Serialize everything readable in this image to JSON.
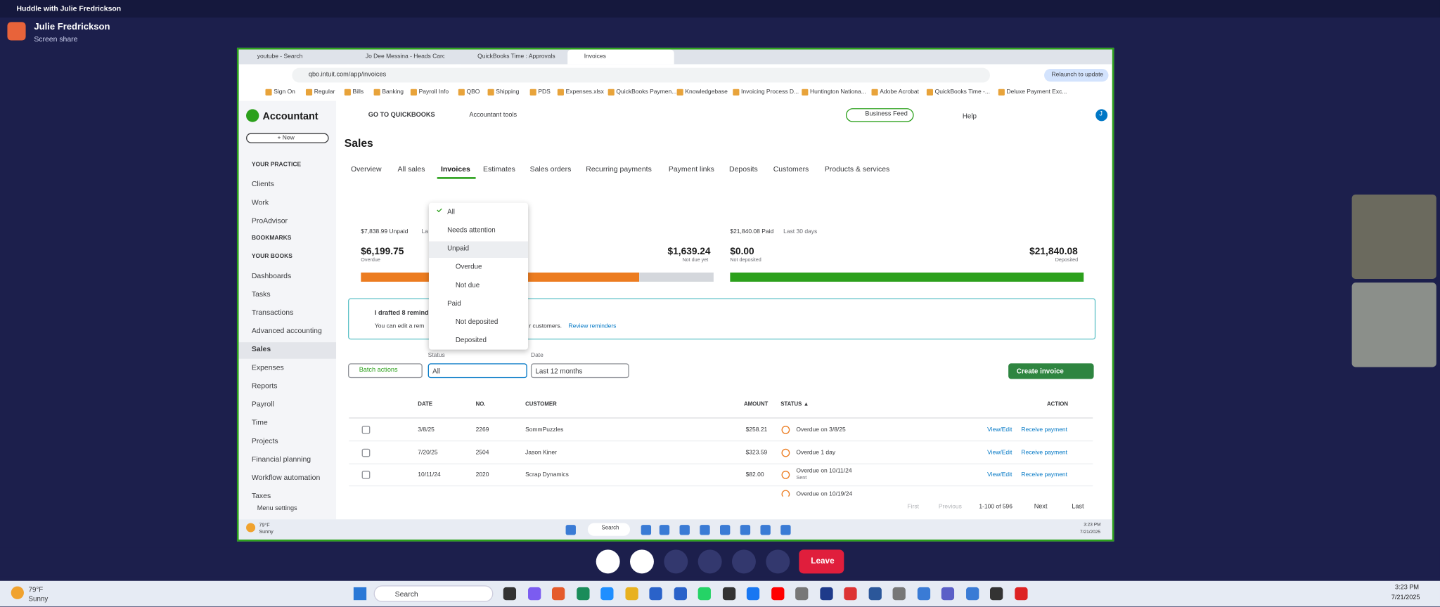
{
  "huddle": {
    "title": "Huddle with Julie Fredrickson",
    "presenter": "Julie Fredrickson",
    "subtitle": "Screen share",
    "leave": "Leave"
  },
  "browser": {
    "tabs": [
      "youtube - Search",
      "Jo Dee Messina - Heads Carolin...",
      "QuickBooks Time : Approvals",
      "Invoices"
    ],
    "url": "qbo.intuit.com/app/invoices",
    "relaunch": "Relaunch to update",
    "bookmarks": [
      "Sign On",
      "Regular",
      "Bills",
      "Banking",
      "Payroll Info",
      "QBO",
      "Shipping",
      "PDS",
      "Expenses.xlsx",
      "QuickBooks Paymen...",
      "Knowledgebase",
      "Invoicing Process D...",
      "Huntington Nationa...",
      "Adobe Acrobat",
      "QuickBooks Time -...",
      "Deluxe Payment Exc..."
    ]
  },
  "qbo": {
    "brand": "Accountant",
    "new": "+ New",
    "goto": "GO TO QUICKBOOKS",
    "tools": "Accountant tools",
    "feed": "Business Feed",
    "help": "Help",
    "avatar": "J",
    "nav": [
      "YOUR PRACTICE",
      "Clients",
      "Work",
      "ProAdvisor",
      "BOOKMARKS",
      "YOUR BOOKS",
      "Dashboards",
      "Tasks",
      "Transactions",
      "Advanced accounting",
      "Sales",
      "Expenses",
      "Reports",
      "Payroll",
      "Time",
      "Projects",
      "Financial planning",
      "Workflow automation",
      "Taxes"
    ],
    "menu_settings": "Menu settings",
    "page_title": "Sales",
    "tabs": [
      "Overview",
      "All sales",
      "Invoices",
      "Estimates",
      "Sales orders",
      "Recurring payments",
      "Payment links",
      "Deposits",
      "Customers",
      "Products & services"
    ],
    "summary": {
      "unpaid": "$7,838.99 Unpaid",
      "unpaid_period": "La",
      "overdue_amount": "$6,199.75",
      "overdue": "Overdue",
      "notdue_amount": "$1,639.24",
      "notdue": "Not due yet",
      "paid": "$21,840.08 Paid",
      "paid_period": "Last 30 days",
      "notdeposited_amount": "$0.00",
      "notdeposited": "Not deposited",
      "deposited_amount": "$21,840.08",
      "deposited": "Deposited"
    },
    "banner": {
      "title": "I drafted 8 remind",
      "text": "You can edit a rem",
      "text_end": "r customers.",
      "link": "Review reminders"
    },
    "dropdown": [
      "All",
      "Needs attention",
      "Unpaid",
      "Overdue",
      "Not due",
      "Paid",
      "Not deposited",
      "Deposited"
    ],
    "filters": {
      "batch": "Batch actions",
      "status_label": "Status",
      "status": "All",
      "date_label": "Date",
      "date": "Last 12 months",
      "create": "Create invoice"
    },
    "table": {
      "headers": [
        "DATE",
        "NO.",
        "CUSTOMER",
        "AMOUNT",
        "STATUS ▲",
        "ACTION"
      ],
      "view": "View/Edit",
      "receive": "Receive payment",
      "rows": [
        {
          "date": "3/8/25",
          "no": "2269",
          "customer": "SommPuzzles",
          "amount": "$258.21",
          "status": "Overdue on 3/8/25"
        },
        {
          "date": "7/20/25",
          "no": "2504",
          "customer": "Jason Kiner",
          "amount": "$323.59",
          "status": "Overdue 1 day"
        },
        {
          "date": "10/11/24",
          "no": "2020",
          "customer": "Scrap Dynamics",
          "amount": "$82.00",
          "status": "Overdue on 10/11/24",
          "note": "Sent"
        },
        {
          "status": "Overdue on 10/19/24"
        }
      ]
    },
    "pagination": {
      "first": "First",
      "previous": "Previous",
      "range": "1-100 of 596",
      "next": "Next",
      "last": "Last"
    }
  },
  "remote_taskbar": {
    "temp": "79°F",
    "weather": "Sunny",
    "search": "Search",
    "time": "3:23 PM",
    "date": "7/21/2025"
  },
  "taskbar": {
    "temp": "79°F",
    "weather": "Sunny",
    "search": "Search",
    "time": "3:23 PM",
    "date": "7/21/2025"
  }
}
